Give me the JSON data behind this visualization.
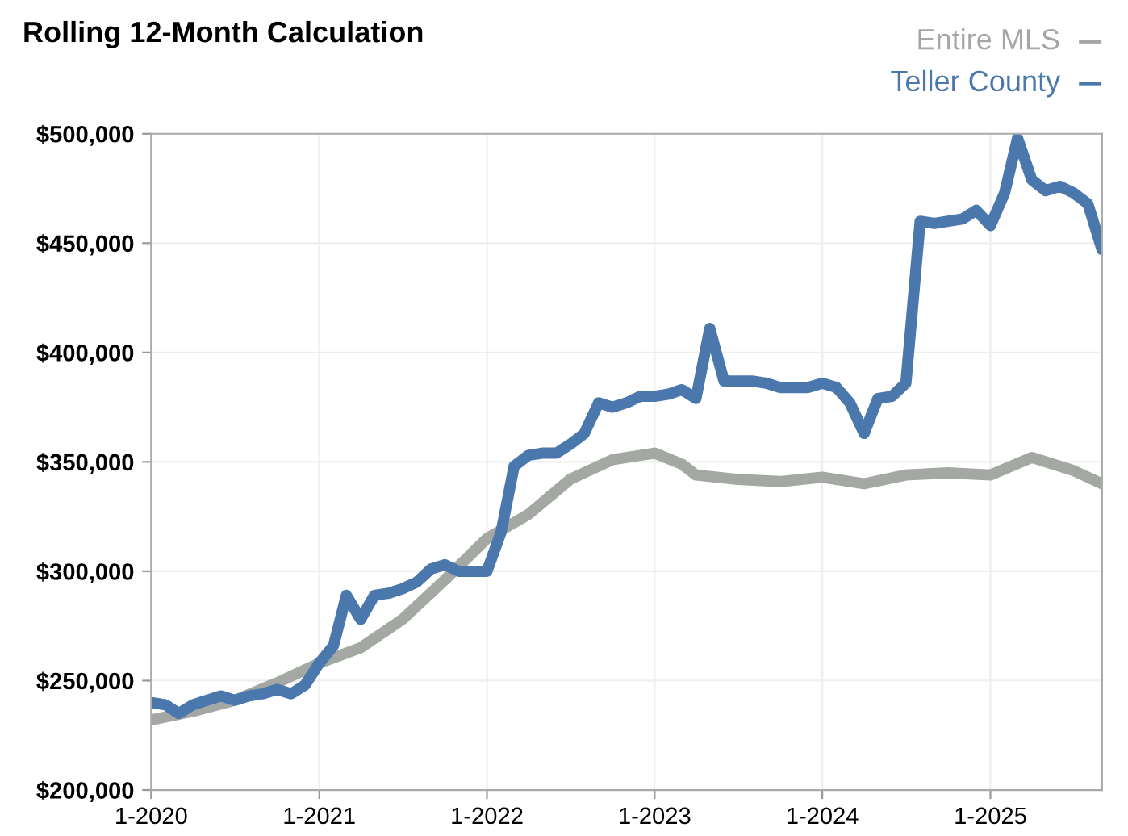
{
  "chart_data": {
    "type": "line",
    "title": "Rolling 12-Month Calculation",
    "xlim": [
      "2020-01",
      "2025-09"
    ],
    "xticks": [
      {
        "value": "2020-01",
        "label": "1-2020"
      },
      {
        "value": "2021-01",
        "label": "1-2021"
      },
      {
        "value": "2022-01",
        "label": "1-2022"
      },
      {
        "value": "2023-01",
        "label": "1-2023"
      },
      {
        "value": "2024-01",
        "label": "1-2024"
      },
      {
        "value": "2025-01",
        "label": "1-2025"
      }
    ],
    "ylim": [
      200000,
      500000
    ],
    "yticks": [
      {
        "value": 200000,
        "label": "$200,000"
      },
      {
        "value": 250000,
        "label": "$250,000"
      },
      {
        "value": 300000,
        "label": "$300,000"
      },
      {
        "value": 350000,
        "label": "$350,000"
      },
      {
        "value": 400000,
        "label": "$400,000"
      },
      {
        "value": 450000,
        "label": "$450,000"
      },
      {
        "value": 500000,
        "label": "$500,000"
      }
    ],
    "grid": true,
    "legend": "top right",
    "marker": "none",
    "line_style": "solid",
    "series": [
      {
        "name": "Entire MLS",
        "color": "#a3a8a3",
        "x": [
          "2020-01",
          "2020-04",
          "2020-07",
          "2020-10",
          "2021-01",
          "2021-04",
          "2021-07",
          "2021-10",
          "2022-01",
          "2022-04",
          "2022-07",
          "2022-10",
          "2022-12",
          "2023-01",
          "2023-03",
          "2023-04",
          "2023-07",
          "2023-10",
          "2024-01",
          "2024-04",
          "2024-07",
          "2024-10",
          "2025-01",
          "2025-04",
          "2025-07",
          "2025-09"
        ],
        "values": [
          232000,
          236000,
          241000,
          249000,
          258000,
          265000,
          278000,
          296000,
          315000,
          326000,
          342000,
          351000,
          353000,
          354000,
          349000,
          344000,
          342000,
          341000,
          343000,
          340000,
          344000,
          345000,
          344000,
          352000,
          346000,
          340000
        ]
      },
      {
        "name": "Teller County",
        "color": "#4a78ad",
        "x": [
          "2020-01",
          "2020-02",
          "2020-03",
          "2020-04",
          "2020-05",
          "2020-06",
          "2020-07",
          "2020-08",
          "2020-09",
          "2020-10",
          "2020-11",
          "2020-12",
          "2021-01",
          "2021-02",
          "2021-03",
          "2021-04",
          "2021-05",
          "2021-06",
          "2021-07",
          "2021-08",
          "2021-09",
          "2021-10",
          "2021-11",
          "2021-12",
          "2022-01",
          "2022-02",
          "2022-03",
          "2022-04",
          "2022-05",
          "2022-06",
          "2022-07",
          "2022-08",
          "2022-09",
          "2022-10",
          "2022-11",
          "2022-12",
          "2023-01",
          "2023-02",
          "2023-03",
          "2023-04",
          "2023-05",
          "2023-06",
          "2023-07",
          "2023-08",
          "2023-09",
          "2023-10",
          "2023-11",
          "2023-12",
          "2024-01",
          "2024-02",
          "2024-03",
          "2024-04",
          "2024-05",
          "2024-06",
          "2024-07",
          "2024-08",
          "2024-09",
          "2024-10",
          "2024-11",
          "2024-12",
          "2025-01",
          "2025-02",
          "2025-03",
          "2025-04",
          "2025-05",
          "2025-06",
          "2025-07",
          "2025-08",
          "2025-09"
        ],
        "values": [
          240000,
          239000,
          235000,
          239000,
          241000,
          243000,
          241000,
          243000,
          244000,
          246000,
          244000,
          248000,
          258000,
          266000,
          289000,
          278000,
          289000,
          290000,
          292000,
          295000,
          301000,
          303000,
          300000,
          300000,
          300000,
          318000,
          348000,
          353000,
          354000,
          354000,
          358000,
          363000,
          377000,
          375000,
          377000,
          380000,
          380000,
          381000,
          383000,
          379000,
          411000,
          387000,
          387000,
          387000,
          386000,
          384000,
          384000,
          384000,
          386000,
          384000,
          377000,
          363000,
          379000,
          380000,
          386000,
          460000,
          459000,
          460000,
          461000,
          465000,
          458000,
          473000,
          498000,
          479000,
          474000,
          476000,
          473000,
          468000,
          447000
        ]
      }
    ]
  }
}
